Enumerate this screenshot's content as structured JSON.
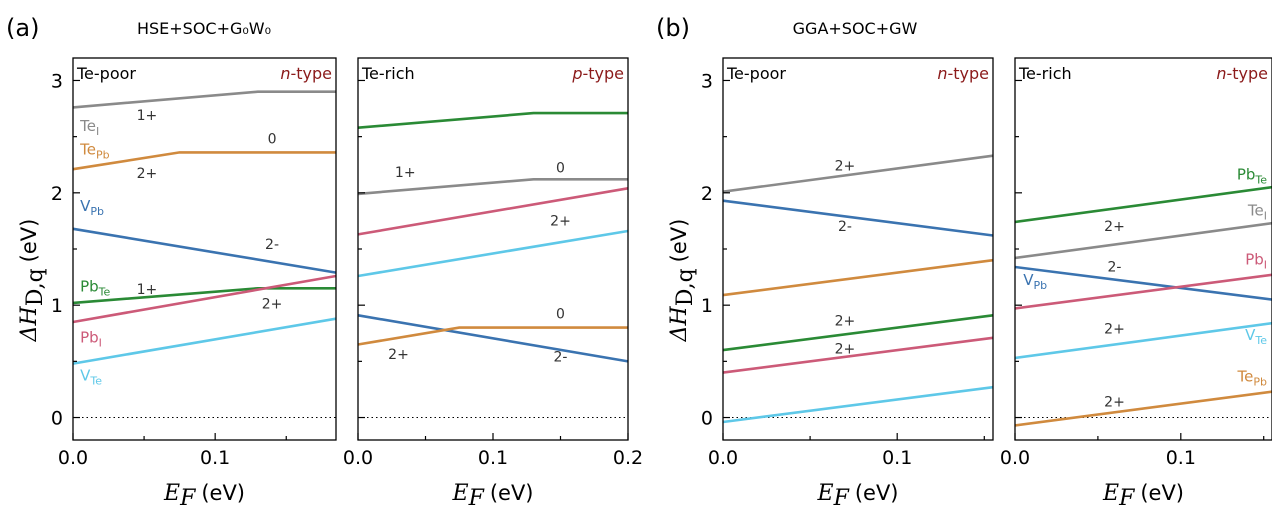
{
  "figure": {
    "panel_a_letter": "(a)",
    "panel_a_title": "HSE+SOC+G₀W₀",
    "panel_b_letter": "(b)",
    "panel_b_title": "GGA+SOC+GW",
    "ylabel": "ΔH",
    "ylabel_sub": "D,q",
    "ylabel_unit": "(eV)",
    "xlabel": "E",
    "xlabel_sub": "F",
    "xlabel_unit": "(eV)"
  },
  "colors": {
    "Te_I": "#8a8a8a",
    "Te_Pb": "#d08a3e",
    "V_Pb": "#3a73b0",
    "Pb_Te": "#2a8a35",
    "Pb_I": "#cc5a78",
    "V_Te": "#5ec8e8",
    "n_type_text": "#8b1a1a"
  },
  "chart_data": [
    {
      "type": "line",
      "panel": "a-left",
      "corner_left": "Te-poor",
      "corner_right": "n-type",
      "xlim": [
        0,
        0.185
      ],
      "ylim": [
        -0.2,
        3.2
      ],
      "xticks": [
        "0.0",
        "0.1"
      ],
      "yticks": [
        "0",
        "1",
        "2",
        "3"
      ],
      "series": [
        {
          "name": "Te_I",
          "label": "Te",
          "sub": "I",
          "color": "#8a8a8a",
          "x": [
            0,
            0.13,
            0.185
          ],
          "y": [
            2.76,
            2.9,
            2.9
          ]
        },
        {
          "name": "Te_Pb",
          "label": "Te",
          "sub": "Pb",
          "color": "#d08a3e",
          "x": [
            0,
            0.075,
            0.185
          ],
          "y": [
            2.21,
            2.36,
            2.36
          ]
        },
        {
          "name": "V_Pb",
          "label": "V",
          "sub": "Pb",
          "color": "#3a73b0",
          "x": [
            0,
            0.185
          ],
          "y": [
            1.68,
            1.29
          ]
        },
        {
          "name": "Pb_Te",
          "label": "Pb",
          "sub": "Te",
          "color": "#2a8a35",
          "x": [
            0,
            0.13,
            0.185
          ],
          "y": [
            1.02,
            1.15,
            1.15
          ]
        },
        {
          "name": "Pb_I",
          "label": "Pb",
          "sub": "I",
          "color": "#cc5a78",
          "x": [
            0,
            0.185
          ],
          "y": [
            0.85,
            1.26
          ]
        },
        {
          "name": "V_Te",
          "label": "V",
          "sub": "Te",
          "color": "#5ec8e8",
          "x": [
            0,
            0.185
          ],
          "y": [
            0.48,
            0.88
          ]
        }
      ],
      "charges": [
        {
          "text": "1+",
          "x": 0.052,
          "y": 2.65
        },
        {
          "text": "0",
          "x": 0.14,
          "y": 2.44
        },
        {
          "text": "2+",
          "x": 0.052,
          "y": 2.13
        },
        {
          "text": "2-",
          "x": 0.14,
          "y": 1.5
        },
        {
          "text": "1+",
          "x": 0.052,
          "y": 1.1
        },
        {
          "text": "2+",
          "x": 0.14,
          "y": 0.97
        }
      ],
      "labels": [
        {
          "series": "Te_I",
          "x": 0.005,
          "y": 2.55
        },
        {
          "series": "Te_Pb",
          "x": 0.005,
          "y": 2.34
        },
        {
          "series": "V_Pb",
          "x": 0.005,
          "y": 1.84
        },
        {
          "series": "Pb_Te",
          "x": 0.005,
          "y": 1.12
        },
        {
          "series": "Pb_I",
          "x": 0.005,
          "y": 0.67
        },
        {
          "series": "V_Te",
          "x": 0.005,
          "y": 0.33
        }
      ]
    },
    {
      "type": "line",
      "panel": "a-right",
      "corner_left": "Te-rich",
      "corner_right": "p-type",
      "xlim": [
        0,
        0.2
      ],
      "ylim": [
        -0.2,
        3.2
      ],
      "xticks": [
        "0.0",
        "0.1",
        "0.2"
      ],
      "yticks": [],
      "series": [
        {
          "name": "Pb_Te",
          "color": "#2a8a35",
          "x": [
            0,
            0.13,
            0.2
          ],
          "y": [
            2.58,
            2.71,
            2.71
          ]
        },
        {
          "name": "Te_I",
          "color": "#8a8a8a",
          "x": [
            0,
            0.13,
            0.2
          ],
          "y": [
            1.99,
            2.12,
            2.12
          ]
        },
        {
          "name": "Pb_I",
          "color": "#cc5a78",
          "x": [
            0,
            0.2
          ],
          "y": [
            1.63,
            2.04
          ]
        },
        {
          "name": "V_Te",
          "color": "#5ec8e8",
          "x": [
            0,
            0.2
          ],
          "y": [
            1.26,
            1.66
          ]
        },
        {
          "name": "V_Pb",
          "color": "#3a73b0",
          "x": [
            0,
            0.2
          ],
          "y": [
            0.91,
            0.5
          ]
        },
        {
          "name": "Te_Pb",
          "color": "#d08a3e",
          "x": [
            0,
            0.075,
            0.2
          ],
          "y": [
            0.65,
            0.8,
            0.8
          ]
        }
      ],
      "charges": [
        {
          "text": "1+",
          "x": 0.035,
          "y": 2.14
        },
        {
          "text": "0",
          "x": 0.15,
          "y": 2.18
        },
        {
          "text": "2+",
          "x": 0.15,
          "y": 1.71
        },
        {
          "text": "0",
          "x": 0.15,
          "y": 0.88
        },
        {
          "text": "2+",
          "x": 0.03,
          "y": 0.52
        },
        {
          "text": "2-",
          "x": 0.15,
          "y": 0.5
        }
      ],
      "labels": []
    },
    {
      "type": "line",
      "panel": "b-left",
      "corner_left": "Te-poor",
      "corner_right": "n-type",
      "xlim": [
        0,
        0.155
      ],
      "ylim": [
        -0.2,
        3.2
      ],
      "xticks": [
        "0.0",
        "0.1"
      ],
      "yticks": [
        "0",
        "1",
        "2",
        "3"
      ],
      "series": [
        {
          "name": "Te_I",
          "color": "#8a8a8a",
          "x": [
            0,
            0.155
          ],
          "y": [
            2.01,
            2.33
          ]
        },
        {
          "name": "V_Pb",
          "color": "#3a73b0",
          "x": [
            0,
            0.155
          ],
          "y": [
            1.93,
            1.62
          ]
        },
        {
          "name": "Te_Pb",
          "color": "#d08a3e",
          "x": [
            0,
            0.155
          ],
          "y": [
            1.09,
            1.4
          ]
        },
        {
          "name": "Pb_Te",
          "color": "#2a8a35",
          "x": [
            0,
            0.155
          ],
          "y": [
            0.6,
            0.91
          ]
        },
        {
          "name": "Pb_I",
          "color": "#cc5a78",
          "x": [
            0,
            0.155
          ],
          "y": [
            0.4,
            0.71
          ]
        },
        {
          "name": "V_Te",
          "color": "#5ec8e8",
          "x": [
            0,
            0.155
          ],
          "y": [
            -0.04,
            0.27
          ]
        }
      ],
      "charges": [
        {
          "text": "2+",
          "x": 0.07,
          "y": 2.2
        },
        {
          "text": "2-",
          "x": 0.07,
          "y": 1.66
        },
        {
          "text": "2+",
          "x": 0.07,
          "y": 0.82
        },
        {
          "text": "2+",
          "x": 0.07,
          "y": 0.57
        }
      ],
      "labels": []
    },
    {
      "type": "line",
      "panel": "b-right",
      "corner_left": "Te-rich",
      "corner_right": "n-type",
      "xlim": [
        0,
        0.155
      ],
      "ylim": [
        -0.2,
        3.2
      ],
      "xticks": [
        "0.0",
        "0.1"
      ],
      "yticks": [],
      "series": [
        {
          "name": "Pb_Te",
          "label": "Pb",
          "sub": "Te",
          "color": "#2a8a35",
          "x": [
            0,
            0.155
          ],
          "y": [
            1.74,
            2.05
          ]
        },
        {
          "name": "Te_I",
          "label": "Te",
          "sub": "I",
          "color": "#8a8a8a",
          "x": [
            0,
            0.155
          ],
          "y": [
            1.42,
            1.73
          ]
        },
        {
          "name": "V_Pb",
          "label": "V",
          "sub": "Pb",
          "color": "#3a73b0",
          "x": [
            0,
            0.155
          ],
          "y": [
            1.34,
            1.05
          ]
        },
        {
          "name": "Pb_I",
          "label": "Pb",
          "sub": "I",
          "color": "#cc5a78",
          "x": [
            0,
            0.155
          ],
          "y": [
            0.97,
            1.27
          ]
        },
        {
          "name": "V_Te",
          "label": "V",
          "sub": "Te",
          "color": "#5ec8e8",
          "x": [
            0,
            0.155
          ],
          "y": [
            0.53,
            0.84
          ]
        },
        {
          "name": "Te_Pb",
          "label": "Te",
          "sub": "Pb",
          "color": "#d08a3e",
          "x": [
            0,
            0.155
          ],
          "y": [
            -0.07,
            0.23
          ]
        }
      ],
      "charges": [
        {
          "text": "2+",
          "x": 0.06,
          "y": 1.66
        },
        {
          "text": "2-",
          "x": 0.06,
          "y": 1.3
        },
        {
          "text": "2+",
          "x": 0.06,
          "y": 0.75
        },
        {
          "text": "2+",
          "x": 0.06,
          "y": 0.1
        }
      ],
      "labels": [
        {
          "series": "Pb_Te",
          "x": 0.152,
          "y": 2.12,
          "anchor": "end"
        },
        {
          "series": "Te_I",
          "x": 0.152,
          "y": 1.8,
          "anchor": "end"
        },
        {
          "series": "V_Pb",
          "x": 0.005,
          "y": 1.18,
          "anchor": "start"
        },
        {
          "series": "Pb_I",
          "x": 0.152,
          "y": 1.36,
          "anchor": "end"
        },
        {
          "series": "V_Te",
          "x": 0.152,
          "y": 0.69,
          "anchor": "end"
        },
        {
          "series": "Te_Pb",
          "x": 0.152,
          "y": 0.32,
          "anchor": "end"
        }
      ]
    }
  ]
}
